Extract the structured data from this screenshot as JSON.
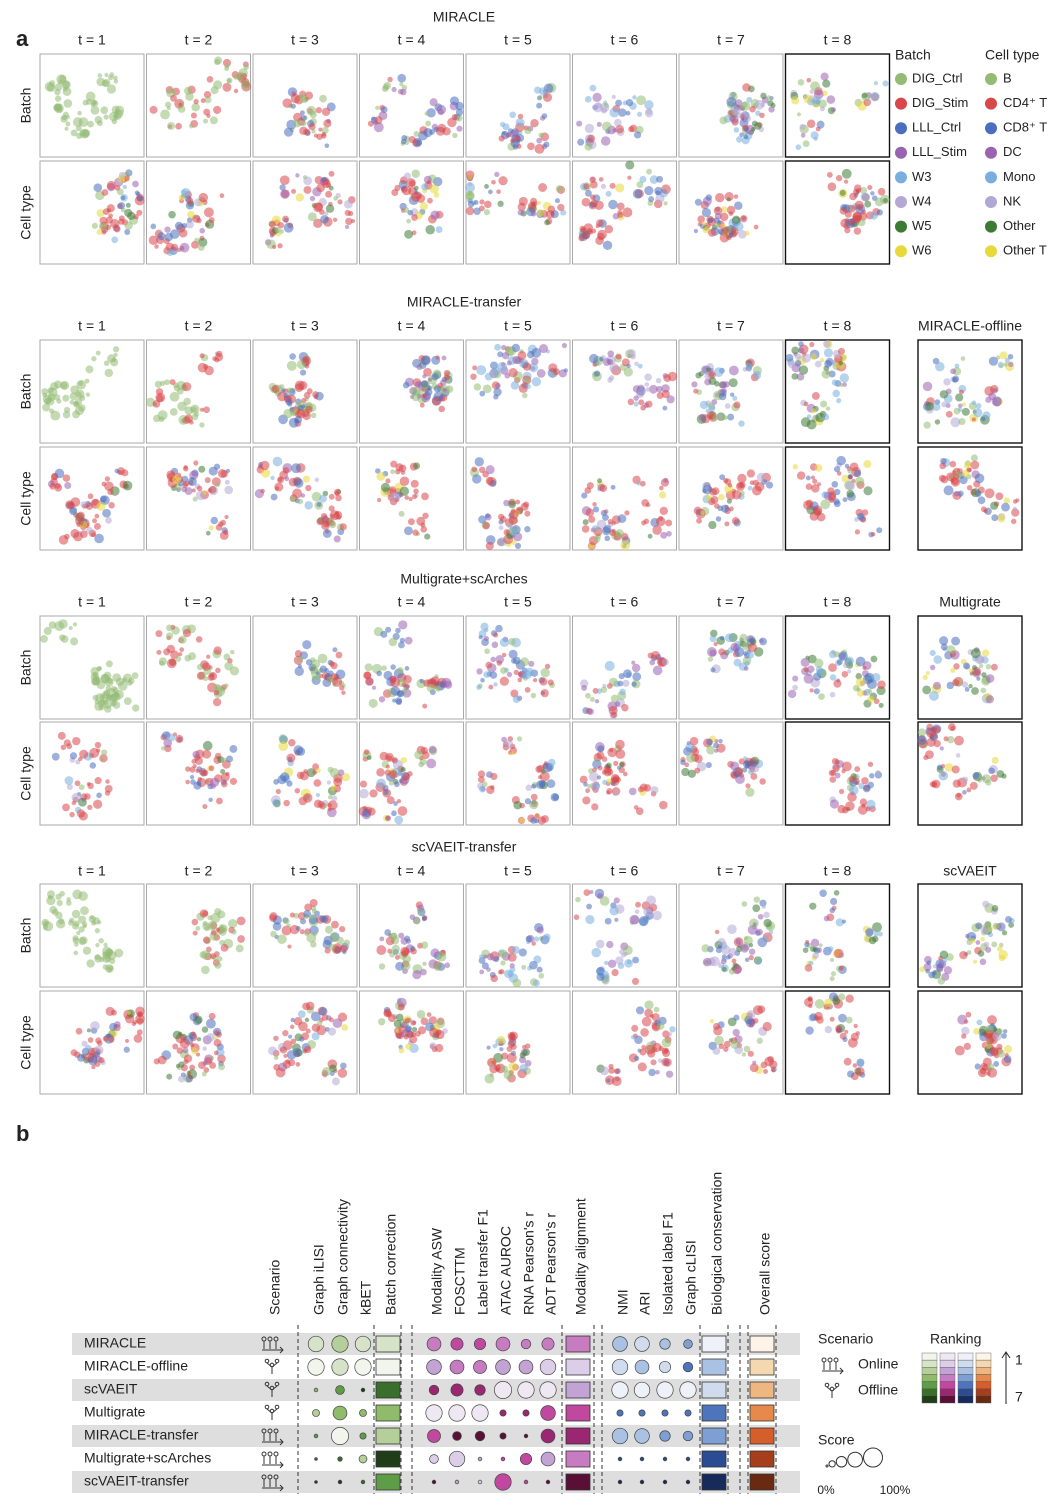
{
  "panel_a": {
    "label": "a",
    "timepoints": [
      "t = 1",
      "t = 2",
      "t = 3",
      "t = 4",
      "t = 5",
      "t = 6",
      "t = 7",
      "t = 8"
    ],
    "row_labels": [
      "Batch",
      "Cell type"
    ],
    "sections": [
      {
        "title": "MIRACLE"
      },
      {
        "title": "MIRACLE-transfer",
        "extra": "MIRACLE-offline"
      },
      {
        "title": "Multigrate+scArches",
        "extra": "Multigrate"
      },
      {
        "title": "scVAEIT-transfer",
        "extra": "scVAEIT"
      }
    ],
    "legend": {
      "batch_title": "Batch",
      "batch": [
        {
          "name": "DIG_Ctrl",
          "color": "#93bb74"
        },
        {
          "name": "DIG_Stim",
          "color": "#d8474a"
        },
        {
          "name": "LLL_Ctrl",
          "color": "#4a6fbd"
        },
        {
          "name": "LLL_Stim",
          "color": "#9a63b0"
        },
        {
          "name": "W3",
          "color": "#7aaede"
        },
        {
          "name": "W4",
          "color": "#b3a8d3"
        },
        {
          "name": "W5",
          "color": "#3d7a34"
        },
        {
          "name": "W6",
          "color": "#e7d93a"
        }
      ],
      "celltype_title": "Cell type",
      "celltype": [
        {
          "name": "B",
          "color": "#93bb74"
        },
        {
          "name": "CD4⁺ T",
          "color": "#d8474a"
        },
        {
          "name": "CD8⁺ T",
          "color": "#4a6fbd"
        },
        {
          "name": "DC",
          "color": "#9a63b0"
        },
        {
          "name": "Mono",
          "color": "#7aaede"
        },
        {
          "name": "NK",
          "color": "#b3a8d3"
        },
        {
          "name": "Other",
          "color": "#3d7a34"
        },
        {
          "name": "Other T",
          "color": "#e7d93a"
        }
      ]
    }
  },
  "panel_b": {
    "label": "b",
    "palettes": {
      "batch": [
        "#f2f5ec",
        "#d6e3c8",
        "#b5cf9a",
        "#8fbb6a",
        "#5f9c47",
        "#3a6e2c",
        "#1f3d19"
      ],
      "modality": [
        "#efe7f2",
        "#dccde8",
        "#c2a3d4",
        "#c77bc0",
        "#c0499f",
        "#9a2771",
        "#5a0f36"
      ],
      "bio": [
        "#eef2f8",
        "#d0dcee",
        "#a9c1e3",
        "#7d9fd3",
        "#4e74bc",
        "#2b4b93",
        "#172a5c"
      ],
      "overall": [
        "#fdf3e6",
        "#f4d8b0",
        "#eeb680",
        "#e6894a",
        "#d55f2a",
        "#a63e1c",
        "#6a2a12"
      ]
    },
    "rows": [
      {
        "name": "MIRACLE",
        "scenario": "online"
      },
      {
        "name": "MIRACLE-offline",
        "scenario": "offline"
      },
      {
        "name": "scVAEIT",
        "scenario": "offline"
      },
      {
        "name": "Multigrate",
        "scenario": "offline"
      },
      {
        "name": "MIRACLE-transfer",
        "scenario": "online"
      },
      {
        "name": "Multigrate+scArches",
        "scenario": "online"
      },
      {
        "name": "scVAEIT-transfer",
        "scenario": "online"
      }
    ],
    "scenario_column": "Scenario",
    "columns": [
      {
        "name": "Graph iLISI",
        "kind": "dot",
        "group": "batch",
        "scores": [
          80,
          85,
          10,
          30,
          10,
          5,
          5
        ],
        "ranks": [
          2,
          1,
          4,
          3,
          5,
          6,
          7
        ]
      },
      {
        "name": "Graph connectivity",
        "kind": "dot",
        "group": "batch",
        "scores": [
          85,
          85,
          40,
          70,
          90,
          15,
          10
        ],
        "ranks": [
          3,
          2,
          5,
          4,
          1,
          6,
          7
        ]
      },
      {
        "name": "kBET",
        "kind": "dot",
        "group": "batch",
        "scores": [
          80,
          85,
          10,
          30,
          25,
          35,
          10
        ],
        "ranks": [
          2,
          1,
          7,
          4,
          5,
          3,
          6
        ]
      },
      {
        "name": "Batch correction",
        "kind": "box",
        "group": "batch",
        "ranks": [
          2,
          1,
          6,
          4,
          3,
          7,
          5
        ]
      },
      {
        "name": "Modality ASW",
        "kind": "dot",
        "group": "modality",
        "scores": [
          70,
          75,
          45,
          85,
          65,
          40,
          10
        ],
        "ranks": [
          4,
          3,
          6,
          1,
          5,
          2,
          7
        ]
      },
      {
        "name": "FOSCTTM",
        "kind": "dot",
        "group": "modality",
        "scores": [
          60,
          70,
          60,
          85,
          40,
          80,
          10
        ],
        "ranks": [
          5,
          4,
          6,
          1,
          7,
          2,
          3
        ]
      },
      {
        "name": "Label transfer F1",
        "kind": "dot",
        "group": "modality",
        "scores": [
          55,
          65,
          50,
          85,
          45,
          10,
          10
        ],
        "ranks": [
          5,
          4,
          6,
          1,
          7,
          3,
          2
        ]
      },
      {
        "name": "ATAC AUROC",
        "kind": "dot",
        "group": "modality",
        "scores": [
          70,
          75,
          90,
          25,
          25,
          10,
          85
        ],
        "ranks": [
          4,
          3,
          1,
          6,
          7,
          5,
          5
        ]
      },
      {
        "name": "RNA Pearson's r",
        "kind": "dot",
        "group": "modality",
        "scores": [
          45,
          70,
          85,
          25,
          10,
          55,
          10
        ],
        "ranks": [
          4,
          3,
          1,
          6,
          7,
          5,
          5
        ]
      },
      {
        "name": "ADT Pearson's r",
        "kind": "dot",
        "group": "modality",
        "scores": [
          60,
          80,
          85,
          75,
          70,
          70,
          10
        ],
        "ranks": [
          4,
          2,
          1,
          5,
          6,
          3,
          7
        ]
      },
      {
        "name": "Modality alignment",
        "kind": "box",
        "group": "modality",
        "ranks": [
          4,
          2,
          3,
          5,
          6,
          4,
          7
        ]
      },
      {
        "name": "NMI",
        "kind": "dot",
        "group": "bio",
        "scores": [
          75,
          80,
          85,
          25,
          80,
          10,
          10
        ],
        "ranks": [
          3,
          2,
          1,
          5,
          3,
          6,
          7
        ]
      },
      {
        "name": "ARI",
        "kind": "dot",
        "group": "bio",
        "scores": [
          75,
          70,
          80,
          25,
          75,
          10,
          10
        ],
        "ranks": [
          2,
          3,
          1,
          5,
          3,
          6,
          7
        ]
      },
      {
        "name": "Isolated label F1",
        "kind": "dot",
        "group": "bio",
        "scores": [
          50,
          55,
          85,
          25,
          50,
          10,
          10
        ],
        "ranks": [
          3,
          2,
          1,
          5,
          4,
          6,
          7
        ]
      },
      {
        "name": "Graph cLISI",
        "kind": "dot",
        "group": "bio",
        "scores": [
          40,
          45,
          85,
          25,
          45,
          10,
          10
        ],
        "ranks": [
          4,
          5,
          1,
          5,
          4,
          6,
          7
        ]
      },
      {
        "name": "Biological conservation",
        "kind": "box",
        "group": "bio",
        "ranks": [
          1,
          3,
          2,
          5,
          4,
          6,
          7
        ]
      },
      {
        "name": "Overall score",
        "kind": "box",
        "group": "overall",
        "ranks": [
          1,
          2,
          3,
          4,
          5,
          6,
          7
        ]
      }
    ],
    "legend": {
      "scenario_title": "Scenario",
      "online": "Online",
      "offline": "Offline",
      "ranking_title": "Ranking",
      "rank_top": 1,
      "rank_bottom": 7,
      "score_title": "Score",
      "score_steps": [
        0,
        25,
        50,
        75,
        100
      ],
      "score_min_label": "0%",
      "score_max_label": "100%"
    }
  }
}
